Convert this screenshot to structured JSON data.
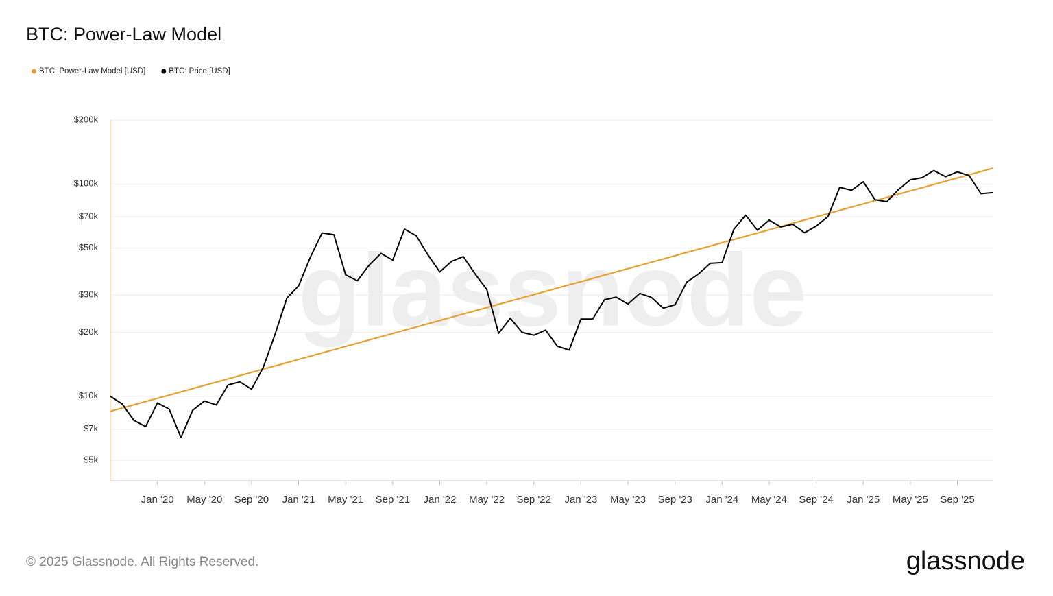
{
  "chart_data": {
    "type": "line",
    "title": "BTC: Power-Law Model",
    "log_scale_y": true,
    "grid": true,
    "legend_position": "top-left",
    "watermark": "glassnode",
    "copyright": "© 2025 Glassnode. All Rights Reserved.",
    "brand": "glassnode",
    "x": [
      "2019-09",
      "2019-10",
      "2019-11",
      "2019-12",
      "2020-01",
      "2020-02",
      "2020-03",
      "2020-04",
      "2020-05",
      "2020-06",
      "2020-07",
      "2020-08",
      "2020-09",
      "2020-10",
      "2020-11",
      "2020-12",
      "2021-01",
      "2021-02",
      "2021-03",
      "2021-04",
      "2021-05",
      "2021-06",
      "2021-07",
      "2021-08",
      "2021-09",
      "2021-10",
      "2021-11",
      "2021-12",
      "2022-01",
      "2022-02",
      "2022-03",
      "2022-04",
      "2022-05",
      "2022-06",
      "2022-07",
      "2022-08",
      "2022-09",
      "2022-10",
      "2022-11",
      "2022-12",
      "2023-01",
      "2023-02",
      "2023-03",
      "2023-04",
      "2023-05",
      "2023-06",
      "2023-07",
      "2023-08",
      "2023-09",
      "2023-10",
      "2023-11",
      "2023-12",
      "2024-01",
      "2024-02",
      "2024-03",
      "2024-04",
      "2024-05",
      "2024-06",
      "2024-07",
      "2024-08",
      "2024-09",
      "2024-10",
      "2024-11",
      "2024-12",
      "2025-01",
      "2025-02",
      "2025-03",
      "2025-04",
      "2025-05",
      "2025-06",
      "2025-07",
      "2025-08",
      "2025-09",
      "2025-10",
      "2025-11",
      "2025-12"
    ],
    "xlim": [
      "2019-09",
      "2025-12"
    ],
    "xticks": [
      {
        "value": "2020-01",
        "label": "Jan '20"
      },
      {
        "value": "2020-05",
        "label": "May '20"
      },
      {
        "value": "2020-09",
        "label": "Sep '20"
      },
      {
        "value": "2021-01",
        "label": "Jan '21"
      },
      {
        "value": "2021-05",
        "label": "May '21"
      },
      {
        "value": "2021-09",
        "label": "Sep '21"
      },
      {
        "value": "2022-01",
        "label": "Jan '22"
      },
      {
        "value": "2022-05",
        "label": "May '22"
      },
      {
        "value": "2022-09",
        "label": "Sep '22"
      },
      {
        "value": "2023-01",
        "label": "Jan '23"
      },
      {
        "value": "2023-05",
        "label": "May '23"
      },
      {
        "value": "2023-09",
        "label": "Sep '23"
      },
      {
        "value": "2024-01",
        "label": "Jan '24"
      },
      {
        "value": "2024-05",
        "label": "May '24"
      },
      {
        "value": "2024-09",
        "label": "Sep '24"
      },
      {
        "value": "2025-01",
        "label": "Jan '25"
      },
      {
        "value": "2025-05",
        "label": "May '25"
      },
      {
        "value": "2025-09",
        "label": "Sep '25"
      }
    ],
    "ylim": [
      4000,
      200000
    ],
    "yticks": [
      {
        "value": 5000,
        "label": "$5k"
      },
      {
        "value": 7000,
        "label": "$7k"
      },
      {
        "value": 10000,
        "label": "$10k"
      },
      {
        "value": 20000,
        "label": "$20k"
      },
      {
        "value": 30000,
        "label": "$30k"
      },
      {
        "value": 50000,
        "label": "$50k"
      },
      {
        "value": 70000,
        "label": "$70k"
      },
      {
        "value": 100000,
        "label": "$100k"
      },
      {
        "value": 200000,
        "label": "$200k"
      }
    ],
    "series": [
      {
        "name": "BTC: Power-Law Model [USD]",
        "color": "#e89f32",
        "values": [
          8500,
          8800,
          9120,
          9450,
          9780,
          10130,
          10490,
          10870,
          11260,
          11660,
          12080,
          12510,
          12960,
          13420,
          13900,
          14400,
          14920,
          15450,
          16000,
          16570,
          17170,
          17780,
          18420,
          19080,
          19760,
          20470,
          21200,
          21960,
          22740,
          23560,
          24400,
          25270,
          26170,
          27110,
          28080,
          29080,
          30120,
          31200,
          32310,
          33470,
          34670,
          35910,
          37190,
          38520,
          39900,
          41330,
          42810,
          44340,
          45920,
          47560,
          49260,
          51030,
          52850,
          54740,
          56700,
          58730,
          60830,
          63000,
          65250,
          67590,
          70000,
          72500,
          75100,
          77790,
          80570,
          83450,
          86430,
          89520,
          92720,
          96030,
          99470,
          103020,
          106710,
          110520,
          114480,
          118570
        ]
      },
      {
        "name": "BTC: Price [USD]",
        "color": "#000000",
        "values": [
          10000,
          9200,
          7700,
          7200,
          9300,
          8700,
          6400,
          8600,
          9500,
          9100,
          11300,
          11700,
          10800,
          13700,
          19600,
          29000,
          33100,
          45200,
          58800,
          57700,
          37300,
          35000,
          41500,
          47100,
          43800,
          61300,
          57000,
          46300,
          38500,
          43200,
          45500,
          37700,
          31800,
          19800,
          23300,
          20000,
          19400,
          20500,
          17200,
          16500,
          23100,
          23100,
          28500,
          29300,
          27200,
          30500,
          29200,
          26000,
          27000,
          34500,
          37700,
          42300,
          42600,
          61200,
          71300,
          60600,
          67500,
          62700,
          64600,
          58900,
          63300,
          70200,
          96400,
          93400,
          102400,
          84300,
          82500,
          94200,
          104600,
          107100,
          115700,
          108200,
          114000,
          109500,
          90000,
          91000
        ]
      }
    ]
  }
}
